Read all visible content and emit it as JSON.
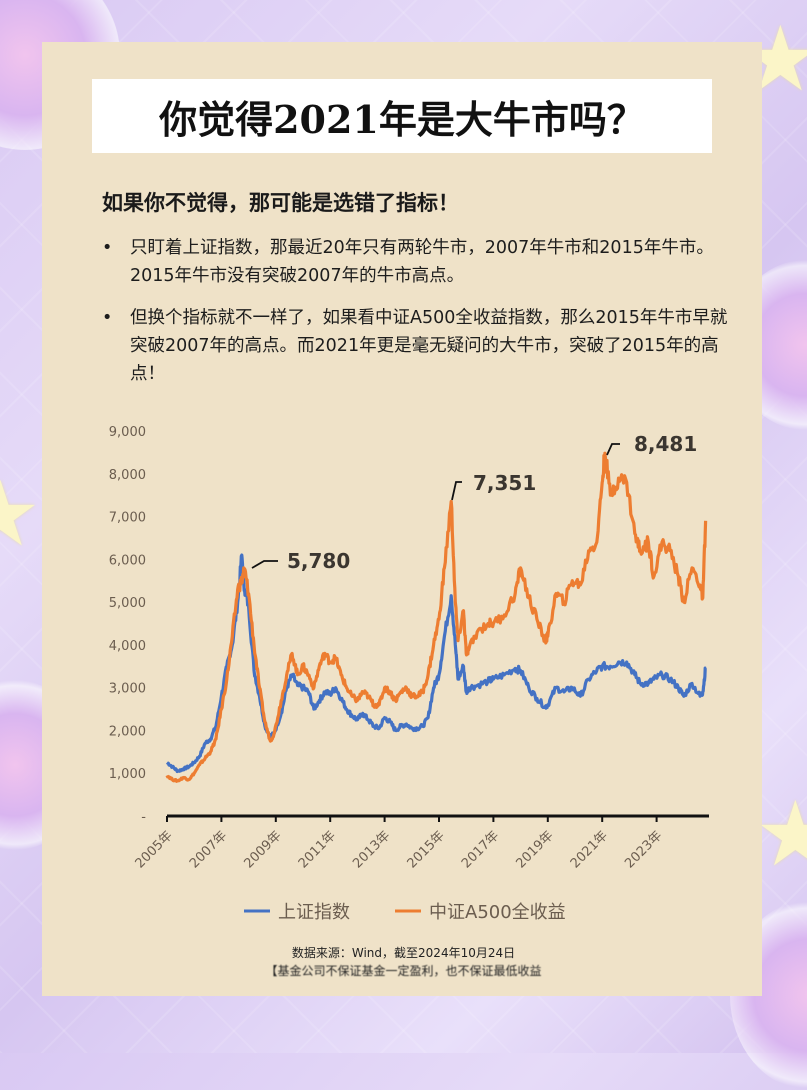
{
  "header": {
    "title": "你觉得2021年是大牛市吗？"
  },
  "intro": {
    "subtitle": "如果你不觉得，那可能是选错了指标！",
    "bullets": [
      {
        "marker": "•",
        "text": "只盯着上证指数，那最近20年只有两轮牛市，2007年牛市和2015年牛市。2015年牛市没有突破2007年的牛市高点。"
      },
      {
        "marker": "•",
        "text": "但换个指标就不一样了，如果看中证A500全收益指数，那么2015年牛市早就突破2007年的高点。而2021年更是毫无疑问的大牛市，突破了2015年的高点！"
      }
    ]
  },
  "footer": {
    "source": "数据来源：Wind，截至2024年10月24日",
    "disclaimer": "【基金公司不保证基金一定盈利，也不保证最低收益"
  },
  "colors": {
    "shanghai": "#4472c4",
    "a500": "#ed7d31",
    "card": "#efe2c8",
    "text": "#1d1d1d"
  },
  "chart_data": {
    "type": "line",
    "title": "",
    "xlabel": "",
    "ylabel": "",
    "ylim": [
      0,
      9000
    ],
    "y_ticks": [
      "-",
      "1,000",
      "2,000",
      "3,000",
      "4,000",
      "5,000",
      "6,000",
      "7,000",
      "8,000",
      "9,000"
    ],
    "x_ticks": [
      "2005年",
      "2007年",
      "2009年",
      "2011年",
      "2013年",
      "2015年",
      "2017年",
      "2019年",
      "2021年",
      "2023年"
    ],
    "grid": false,
    "legend_position": "bottom",
    "annotations": [
      {
        "label": "5,780",
        "x": 2007.85,
        "y": 5780,
        "series": "中证A500全收益"
      },
      {
        "label": "7,351",
        "x": 2015.45,
        "y": 7351,
        "series": "中证A500全收益"
      },
      {
        "label": "8,481",
        "x": 2021.1,
        "y": 8481,
        "series": "中证A500全收益"
      }
    ],
    "series": [
      {
        "name": "上证指数",
        "color": "#4472c4",
        "x": [
          2005.0,
          2005.2,
          2005.4,
          2005.6,
          2005.8,
          2006.0,
          2006.2,
          2006.4,
          2006.6,
          2006.8,
          2007.0,
          2007.2,
          2007.4,
          2007.6,
          2007.75,
          2007.85,
          2008.0,
          2008.2,
          2008.4,
          2008.6,
          2008.8,
          2008.95,
          2009.2,
          2009.4,
          2009.6,
          2009.8,
          2010.0,
          2010.2,
          2010.4,
          2010.6,
          2010.8,
          2011.0,
          2011.2,
          2011.4,
          2011.6,
          2011.8,
          2012.0,
          2012.2,
          2012.4,
          2012.6,
          2012.8,
          2013.0,
          2013.2,
          2013.4,
          2013.6,
          2013.8,
          2014.0,
          2014.2,
          2014.4,
          2014.6,
          2014.8,
          2015.0,
          2015.2,
          2015.45,
          2015.6,
          2015.7,
          2015.9,
          2016.0,
          2016.1,
          2016.4,
          2016.8,
          2017.0,
          2017.4,
          2017.8,
          2018.0,
          2018.3,
          2018.6,
          2018.9,
          2019.0,
          2019.3,
          2019.6,
          2019.9,
          2020.2,
          2020.5,
          2020.8,
          2021.0,
          2021.3,
          2021.6,
          2021.9,
          2022.2,
          2022.4,
          2022.7,
          2022.9,
          2023.2,
          2023.5,
          2023.8,
          2024.0,
          2024.3,
          2024.6,
          2024.7,
          2024.8
        ],
        "values": [
          1250,
          1150,
          1050,
          1100,
          1150,
          1250,
          1400,
          1700,
          1800,
          2100,
          2800,
          3500,
          4000,
          5000,
          6100,
          5300,
          4900,
          3400,
          2800,
          2100,
          1850,
          1950,
          2400,
          3000,
          3300,
          3050,
          3000,
          2900,
          2500,
          2700,
          2900,
          2850,
          3000,
          2750,
          2500,
          2350,
          2250,
          2400,
          2250,
          2100,
          2050,
          2300,
          2200,
          2000,
          2100,
          2150,
          2050,
          2050,
          2100,
          2300,
          3000,
          3300,
          4200,
          5150,
          4000,
          3200,
          3500,
          2900,
          3000,
          3050,
          3150,
          3200,
          3300,
          3450,
          3400,
          3000,
          2750,
          2550,
          2600,
          3000,
          2900,
          3000,
          2800,
          3200,
          3400,
          3500,
          3500,
          3600,
          3600,
          3300,
          3100,
          3100,
          3200,
          3300,
          3200,
          3000,
          2800,
          3100,
          2800,
          2900,
          3450
        ]
      },
      {
        "name": "中证A500全收益",
        "color": "#ed7d31",
        "x": [
          2005.0,
          2005.2,
          2005.4,
          2005.6,
          2005.8,
          2006.0,
          2006.2,
          2006.4,
          2006.6,
          2006.8,
          2007.0,
          2007.2,
          2007.4,
          2007.6,
          2007.75,
          2007.85,
          2008.0,
          2008.2,
          2008.4,
          2008.6,
          2008.8,
          2008.95,
          2009.2,
          2009.4,
          2009.6,
          2009.8,
          2010.0,
          2010.2,
          2010.4,
          2010.6,
          2010.8,
          2011.0,
          2011.2,
          2011.4,
          2011.6,
          2011.8,
          2012.0,
          2012.2,
          2012.4,
          2012.6,
          2012.8,
          2013.0,
          2013.2,
          2013.4,
          2013.6,
          2013.8,
          2014.0,
          2014.2,
          2014.4,
          2014.6,
          2014.8,
          2015.0,
          2015.2,
          2015.45,
          2015.6,
          2015.7,
          2015.9,
          2016.0,
          2016.1,
          2016.4,
          2016.8,
          2017.0,
          2017.4,
          2017.8,
          2018.0,
          2018.3,
          2018.6,
          2018.9,
          2019.0,
          2019.3,
          2019.6,
          2019.9,
          2020.2,
          2020.5,
          2020.8,
          2021.0,
          2021.1,
          2021.3,
          2021.6,
          2021.9,
          2022.2,
          2022.4,
          2022.7,
          2022.9,
          2023.2,
          2023.5,
          2023.8,
          2024.0,
          2024.3,
          2024.6,
          2024.7,
          2024.8
        ],
        "values": [
          950,
          850,
          820,
          900,
          850,
          1000,
          1200,
          1350,
          1500,
          1800,
          2500,
          3200,
          4200,
          5300,
          5500,
          5780,
          5200,
          4000,
          3000,
          2200,
          1750,
          1950,
          2700,
          3300,
          3800,
          3300,
          3500,
          3300,
          3000,
          3500,
          3800,
          3600,
          3700,
          3300,
          3000,
          2800,
          2700,
          2900,
          2800,
          2600,
          2600,
          3000,
          2900,
          2700,
          2900,
          3000,
          2800,
          2800,
          2900,
          3300,
          4000,
          4600,
          5800,
          7351,
          5000,
          4100,
          4800,
          3800,
          3900,
          4300,
          4500,
          4500,
          4700,
          5200,
          5800,
          5100,
          4600,
          4100,
          4200,
          5200,
          5000,
          5500,
          5400,
          6200,
          6400,
          7800,
          8481,
          7500,
          7900,
          7800,
          6600,
          6200,
          6400,
          5600,
          6400,
          6200,
          5600,
          5000,
          5800,
          5400,
          5100,
          6900
        ]
      }
    ]
  },
  "legend": {
    "items": [
      {
        "label": "上证指数",
        "color": "#4472c4"
      },
      {
        "label": "中证A500全收益",
        "color": "#ed7d31"
      }
    ]
  }
}
